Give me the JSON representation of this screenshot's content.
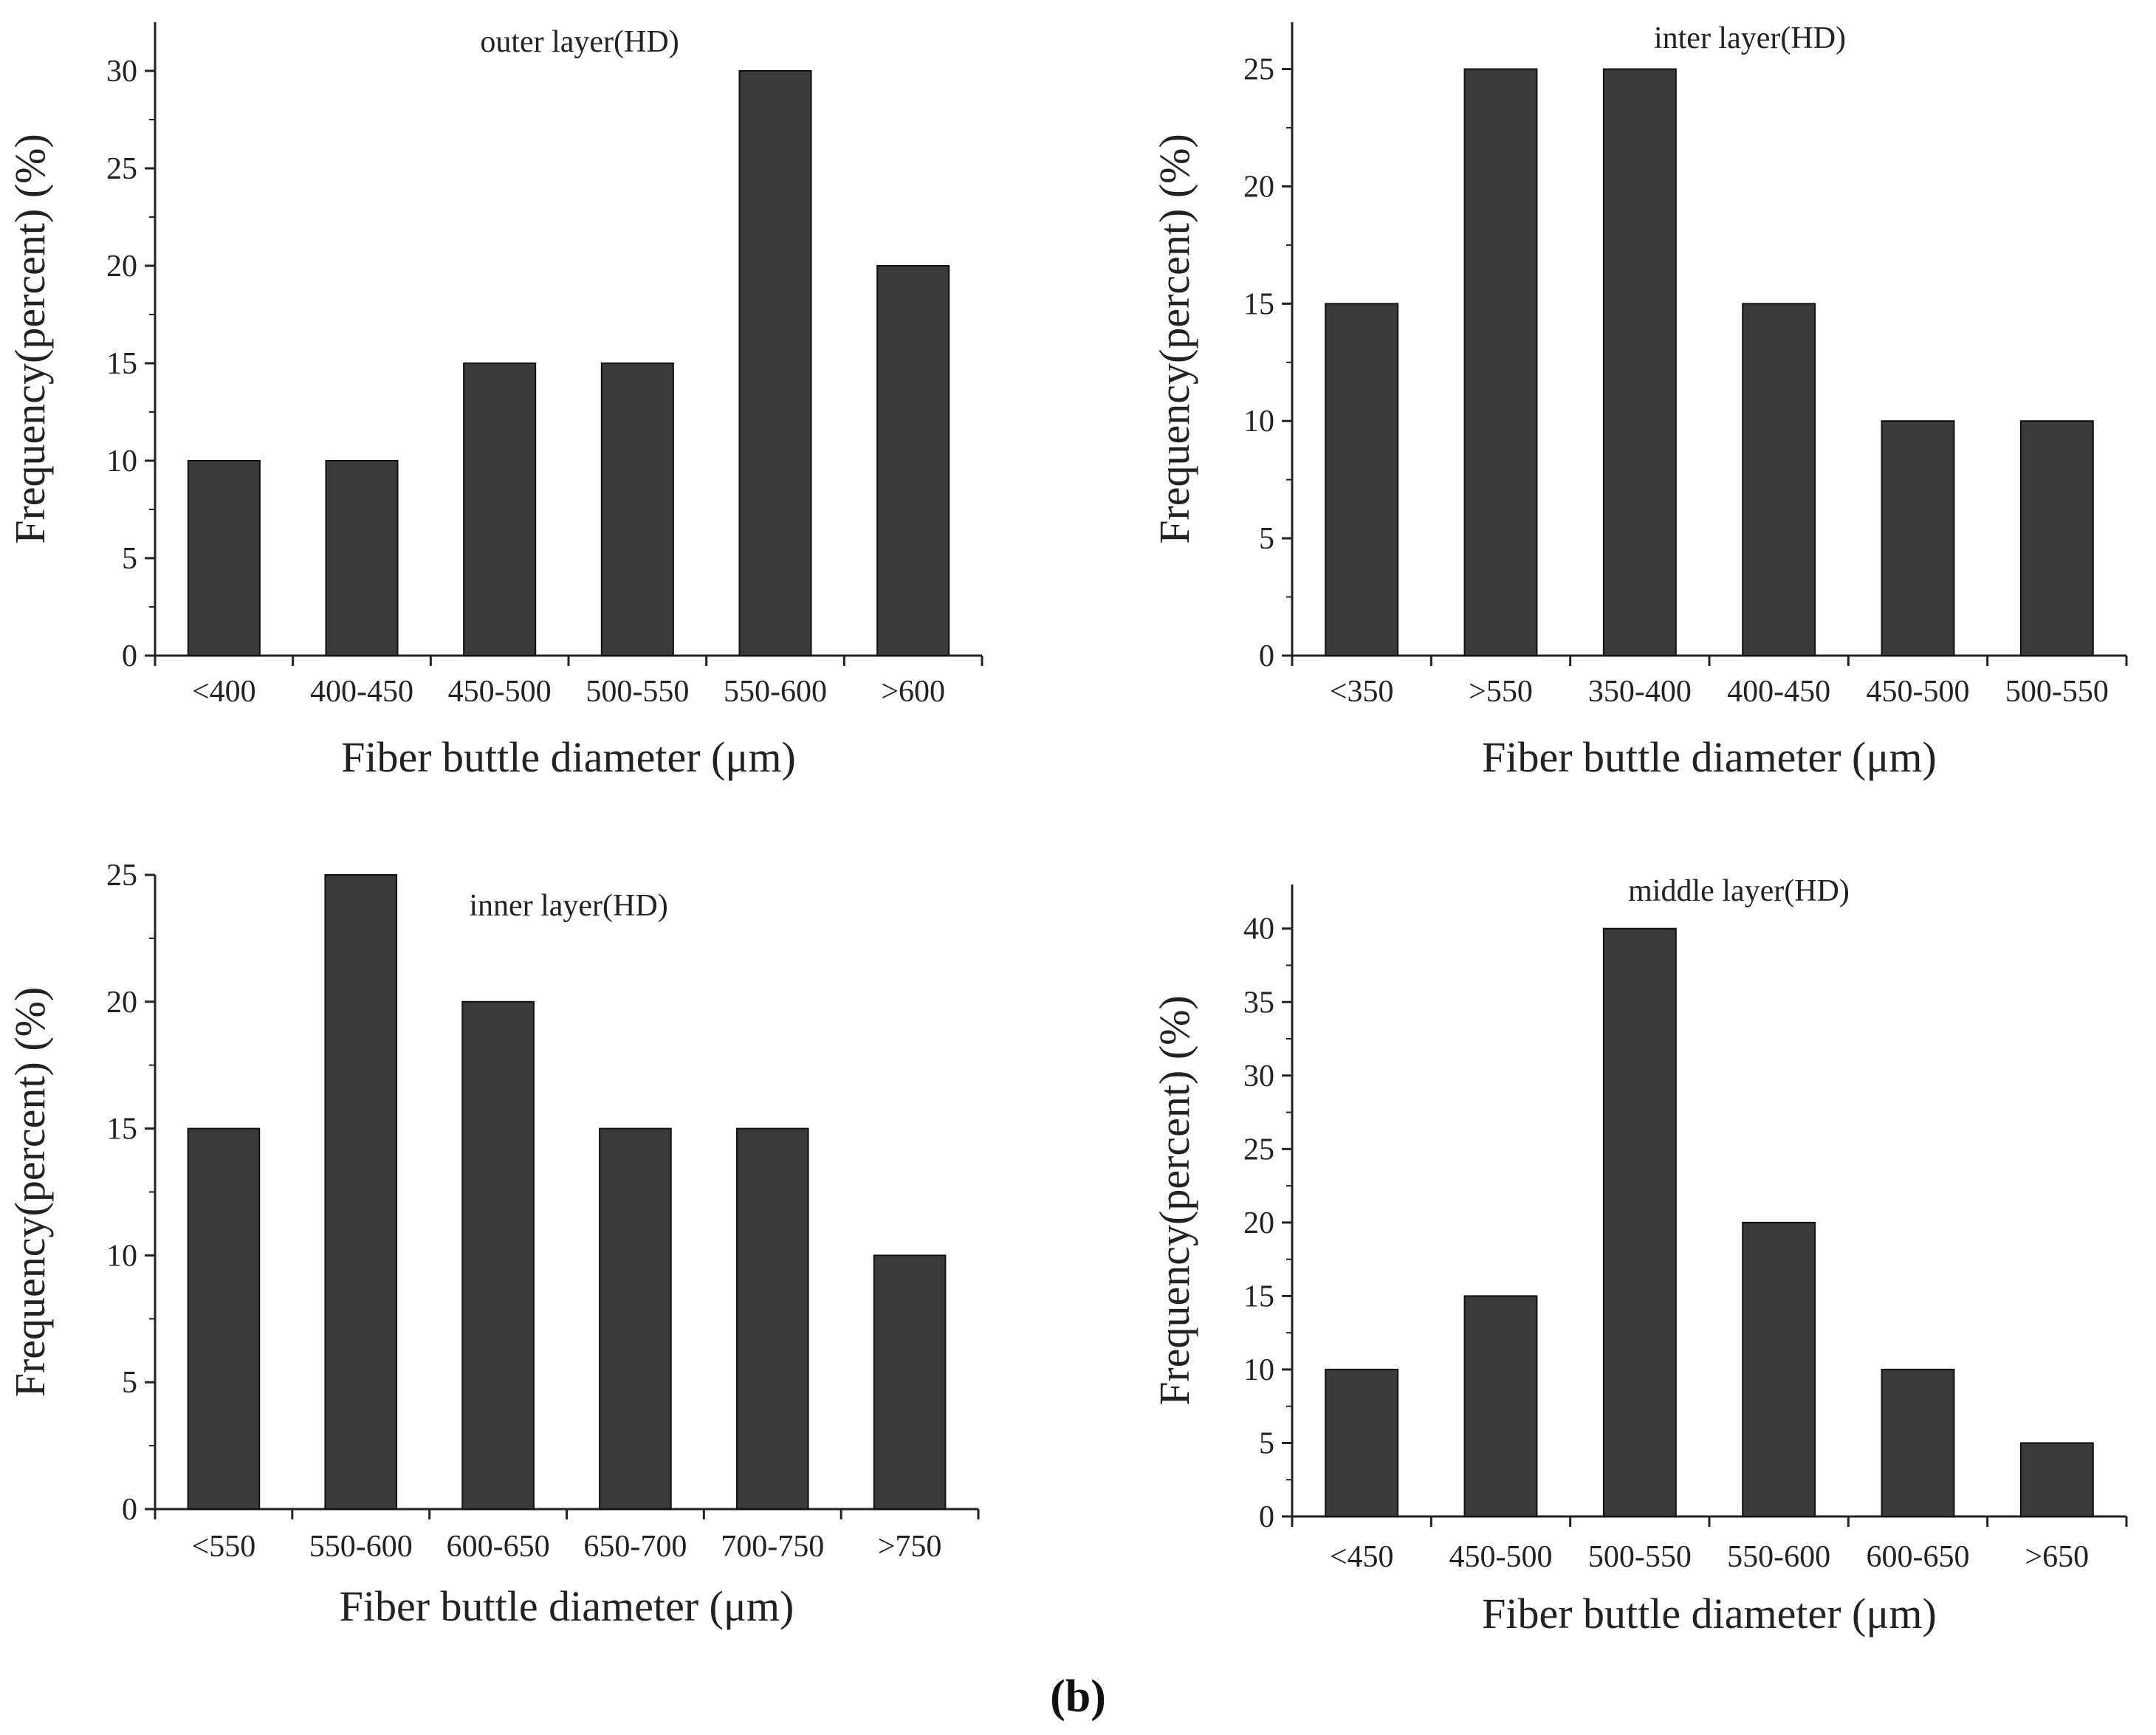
{
  "figure_label": "(b)",
  "colors": {
    "bar": "#3a3a3a",
    "axis": "#222222",
    "text": "#222222"
  },
  "chart_data": [
    {
      "type": "bar",
      "title": "outer layer(HD)",
      "xlabel": "Fiber buttle diameter (μm)",
      "ylabel": "Frequency(percent) (%)",
      "categories": [
        "<400",
        "400-450",
        "450-500",
        "500-550",
        "550-600",
        ">600"
      ],
      "values": [
        10,
        10,
        15,
        15,
        30,
        20
      ],
      "ylim": [
        0,
        32.5
      ],
      "yticks": [
        0,
        5,
        10,
        15,
        20,
        25,
        30
      ],
      "grid": false
    },
    {
      "type": "bar",
      "title": "inter layer(HD)",
      "xlabel": "Fiber buttle diameter (μm)",
      "ylabel": "Frequency(percent) (%)",
      "categories": [
        "<350",
        ">550",
        "350-400",
        "400-450",
        "450-500",
        "500-550"
      ],
      "values": [
        15,
        25,
        25,
        15,
        10,
        10
      ],
      "ylim": [
        0,
        27
      ],
      "yticks": [
        0,
        5,
        10,
        15,
        20,
        25
      ],
      "grid": false
    },
    {
      "type": "bar",
      "title": "inner layer(HD)",
      "xlabel": "Fiber buttle diameter (μm)",
      "ylabel": "Frequency(percent) (%)",
      "categories": [
        "<550",
        "550-600",
        "600-650",
        "650-700",
        "700-750",
        ">750"
      ],
      "values": [
        15,
        25,
        20,
        15,
        15,
        10
      ],
      "ylim": [
        0,
        25
      ],
      "yticks": [
        0,
        5,
        10,
        15,
        20,
        25
      ],
      "grid": false
    },
    {
      "type": "bar",
      "title": "middle layer(HD)",
      "xlabel": "Fiber buttle diameter (μm)",
      "ylabel": "Frequency(percent) (%)",
      "categories": [
        "<450",
        "450-500",
        "500-550",
        "550-600",
        "600-650",
        ">650"
      ],
      "values": [
        10,
        15,
        40,
        20,
        10,
        5
      ],
      "ylim": [
        0,
        43
      ],
      "yticks": [
        0,
        5,
        10,
        15,
        20,
        25,
        30,
        35,
        40
      ],
      "grid": false
    }
  ]
}
